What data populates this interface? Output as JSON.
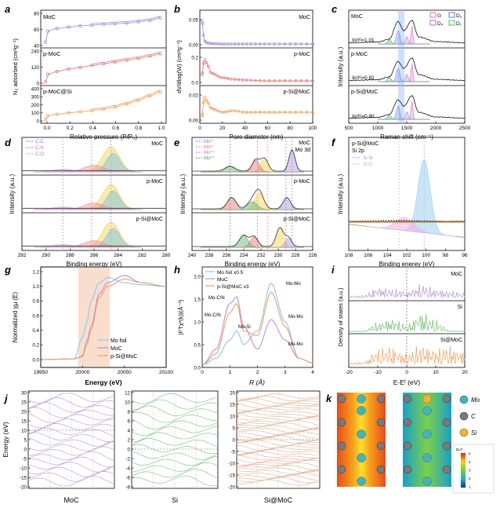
{
  "figure": {
    "panels": {
      "a": {
        "letter": "a",
        "ylabel": "N₂ adsorbed (cm³g⁻¹)",
        "xlabel": "Relative pressure (P/P₀)",
        "xticks": [
          "0.0",
          "0.2",
          "0.4",
          "0.6",
          "0.8",
          "1.0"
        ],
        "subplots": [
          {
            "label": "MoC",
            "yticks": [
              "40",
              "60",
              "80"
            ],
            "color": "#a98bd8"
          },
          {
            "label": "p-MoC",
            "yticks": [
              "0",
              "120",
              "240"
            ],
            "color": "#e08080"
          },
          {
            "label": "p-MoC@Si",
            "yticks": [
              "0",
              "100",
              "200",
              "300",
              "400"
            ],
            "color": "#f0a060"
          }
        ]
      },
      "b": {
        "letter": "b",
        "ylabel": "dV/dlog(W) (cm³g⁻¹)",
        "xlabel": "Pore diameter (nm)",
        "xticks": [
          "0",
          "20",
          "40",
          "60",
          "80",
          "100"
        ],
        "subplots": [
          {
            "label": "MoC",
            "yticks": [
              "0.00",
              "0.05"
            ],
            "color": "#a98bd8"
          },
          {
            "label": "p-MoC",
            "yticks": [
              "0.0",
              "0.2"
            ],
            "color": "#e08080"
          },
          {
            "label": "p-Si@MoC",
            "yticks": [
              "0.00",
              "0.02"
            ],
            "color": "#f0a060"
          }
        ]
      },
      "c": {
        "letter": "c",
        "ylabel": "Intensity (a.u.)",
        "xlabel": "Raman shift (cm⁻¹)",
        "xticks": [
          "500",
          "1000",
          "1500",
          "2000",
          "2500"
        ],
        "legend": [
          "G",
          "D₃",
          "D₄",
          "D₁"
        ],
        "subplots": [
          {
            "label": "MoC",
            "ratio": "Iᴅ/Iᴳ=1.01"
          },
          {
            "label": "p-MoC",
            "ratio": "Iᴅ/Iᴳ=0.82"
          },
          {
            "label": "p-Si@MoC",
            "ratio": "Iᴅ/Iᴳ=0.80"
          }
        ]
      },
      "d": {
        "letter": "d",
        "ylabel": "Intensity (a.u.)",
        "xlabel": "Binding energy (eV)",
        "xticks": [
          "292",
          "290",
          "288",
          "286",
          "284",
          "282",
          "280"
        ],
        "legend": [
          "C-C",
          "C-N",
          "C-O"
        ],
        "subplots": [
          "MoC",
          "p-MoC",
          "p-Si@MoC"
        ]
      },
      "e": {
        "letter": "e",
        "ylabel": "Intensity (a.u.)",
        "xlabel": "Binding energy (eV)",
        "xticks": [
          "240",
          "238",
          "236",
          "234",
          "232",
          "230",
          "228",
          "226"
        ],
        "legend": [
          "Mo²⁺",
          "Mo³⁺",
          "Mo⁴⁺",
          "Mo⁶⁺"
        ],
        "note": "Mo 3d",
        "subplots": [
          "MoC",
          "p-MoC",
          "p-Si@MoC"
        ]
      },
      "f": {
        "letter": "f",
        "ylabel": "Intensity (a.u.)",
        "xlabel": "Binding enerey (eV)",
        "xticks": [
          "108",
          "106",
          "104",
          "102",
          "100",
          "98",
          "96"
        ],
        "title1": "p-Si@MoC",
        "title2": "Si 2p",
        "legend": [
          "Si-Si",
          "Si-O"
        ]
      },
      "g": {
        "letter": "g",
        "ylabel": "Normalized χμ (E)",
        "xlabel": "Energy (eV)",
        "xticks": [
          "19950",
          "20000",
          "20050",
          "20100"
        ],
        "yticks": [
          "0.0",
          "0.2",
          "0.4",
          "0.6",
          "0.8",
          "1.0",
          "1.2"
        ],
        "legend": [
          "Mo foil",
          "MoC",
          "p-Si@MoC"
        ]
      },
      "h": {
        "letter": "h",
        "ylabel": "|FTχ²(k)|(Å⁻³)",
        "xlabel": "R (Å)",
        "xticks": [
          "0",
          "1",
          "2",
          "3",
          "4"
        ],
        "yticks": [
          "0.0",
          "0.5",
          "1.0",
          "1.5",
          "2.0"
        ],
        "legend": [
          "Mo foil x0.5",
          "MoC",
          "p-Si@MoC x3"
        ],
        "annotations": [
          "Mo-C/N",
          "Mo-C/N",
          "Mo-Si",
          "Mo-Mo",
          "Mo-Mo",
          "Mo-Mo"
        ]
      },
      "i": {
        "letter": "i",
        "ylabel": "Density of states (a.u.)",
        "xlabel": "E-Eᶠ (eV)",
        "xticks": [
          "-20",
          "-10",
          "0",
          "10",
          "20"
        ],
        "subplots": [
          "MoC",
          "Si",
          "Si@MoC"
        ]
      },
      "j": {
        "letter": "j",
        "ylabel": "Energy (eV)",
        "subplots": [
          {
            "label": "MoC",
            "yticks": [
              "-20",
              "-15",
              "-10",
              "-5",
              "0",
              "5",
              "10",
              "15",
              "20",
              "25",
              "30"
            ]
          },
          {
            "label": "Si",
            "yticks": [
              "-8",
              "-6",
              "-4",
              "-2",
              "0",
              "2",
              "4",
              "6",
              "8",
              "10",
              "12"
            ]
          },
          {
            "label": "Si@MoC",
            "yticks": [
              "-20",
              "-15",
              "-10",
              "-5",
              "0",
              "5",
              "10",
              "15",
              "20"
            ]
          }
        ]
      },
      "k": {
        "letter": "k",
        "legend": [
          "Mo",
          "C",
          "Si"
        ],
        "colorbar_label": "ELF",
        "colorbar_ticks": [
          "1",
          "2",
          "3",
          "4",
          "5"
        ]
      }
    }
  },
  "chart_data": [
    {
      "panel": "a",
      "type": "scatter",
      "x": [
        0.0,
        0.02,
        0.1,
        0.2,
        0.3,
        0.4,
        0.5,
        0.6,
        0.7,
        0.8,
        0.9,
        0.99
      ],
      "series": [
        {
          "name": "MoC",
          "values": [
            45,
            62,
            66,
            68,
            70,
            71,
            72,
            73,
            74,
            76,
            78,
            82
          ]
        },
        {
          "name": "p-MoC",
          "values": [
            10,
            75,
            100,
            120,
            135,
            150,
            165,
            180,
            195,
            210,
            230,
            250
          ]
        },
        {
          "name": "p-MoC@Si",
          "values": [
            20,
            70,
            90,
            110,
            125,
            140,
            160,
            190,
            230,
            280,
            340,
            400
          ]
        }
      ]
    },
    {
      "panel": "b",
      "type": "line",
      "x": [
        2,
        4,
        6,
        10,
        20,
        30,
        40,
        60,
        80,
        100
      ],
      "series": [
        {
          "name": "MoC",
          "values": [
            0.06,
            0.01,
            0.005,
            0.003,
            0.002,
            0.002,
            0.002,
            0.002,
            0.002,
            0.002
          ]
        },
        {
          "name": "p-MoC",
          "values": [
            0.1,
            0.3,
            0.25,
            0.12,
            0.06,
            0.04,
            0.03,
            0.02,
            0.02,
            0.02
          ]
        },
        {
          "name": "p-Si@MoC",
          "values": [
            0.005,
            0.03,
            0.025,
            0.015,
            0.01,
            0.012,
            0.01,
            0.01,
            0.01,
            0.01
          ]
        }
      ]
    },
    {
      "panel": "c",
      "type": "line",
      "x": [
        500,
        1000,
        1200,
        1350,
        1450,
        1590,
        1700,
        2000,
        2500
      ],
      "series": [
        {
          "name": "MoC",
          "values": [
            0.05,
            0.08,
            0.2,
            0.95,
            0.55,
            1.0,
            0.3,
            0.1,
            0.05
          ]
        },
        {
          "name": "p-MoC",
          "values": [
            0.05,
            0.08,
            0.2,
            0.85,
            0.55,
            1.0,
            0.3,
            0.1,
            0.05
          ]
        },
        {
          "name": "p-Si@MoC",
          "values": [
            0.05,
            0.08,
            0.2,
            0.82,
            0.55,
            1.0,
            0.3,
            0.1,
            0.05
          ]
        }
      ]
    },
    {
      "panel": "d",
      "type": "line",
      "x": [
        292,
        290,
        288,
        286,
        285,
        284.6,
        284,
        282,
        280
      ],
      "series": [
        {
          "name": "MoC",
          "values": [
            0.05,
            0.08,
            0.12,
            0.3,
            0.8,
            1.0,
            0.6,
            0.1,
            0.05
          ]
        },
        {
          "name": "p-MoC",
          "values": [
            0.05,
            0.07,
            0.1,
            0.25,
            0.8,
            1.0,
            0.6,
            0.1,
            0.05
          ]
        },
        {
          "name": "p-Si@MoC",
          "values": [
            0.05,
            0.1,
            0.15,
            0.3,
            0.8,
            1.0,
            0.6,
            0.1,
            0.05
          ]
        }
      ]
    },
    {
      "panel": "e",
      "type": "line",
      "x": [
        240,
        236,
        235.5,
        234,
        232.5,
        231,
        229,
        228.5,
        226
      ],
      "series": [
        {
          "name": "MoC",
          "values": [
            0.05,
            0.2,
            0.3,
            0.4,
            0.6,
            0.5,
            0.8,
            1.0,
            0.1
          ]
        },
        {
          "name": "p-MoC",
          "values": [
            0.05,
            0.5,
            0.55,
            0.35,
            0.8,
            0.5,
            0.7,
            0.6,
            0.1
          ]
        },
        {
          "name": "p-Si@MoC",
          "values": [
            0.05,
            0.3,
            0.35,
            0.5,
            0.6,
            0.45,
            0.9,
            0.7,
            0.1
          ]
        }
      ]
    },
    {
      "panel": "f",
      "type": "line",
      "x": [
        108,
        106,
        104,
        102,
        101,
        100.2,
        99,
        98,
        96
      ],
      "series": [
        {
          "name": "p-Si@MoC",
          "values": [
            0.25,
            0.2,
            0.18,
            0.3,
            0.7,
            1.0,
            0.5,
            0.12,
            0.08
          ]
        }
      ]
    },
    {
      "panel": "g",
      "type": "line",
      "x": [
        19950,
        19990,
        20000,
        20005,
        20010,
        20020,
        20030,
        20050,
        20070,
        20100
      ],
      "series": [
        {
          "name": "Mo foil",
          "values": [
            0.0,
            0.01,
            0.3,
            0.5,
            0.8,
            1.05,
            1.12,
            1.05,
            1.02,
            1.0
          ]
        },
        {
          "name": "MoC",
          "values": [
            0.0,
            0.01,
            0.05,
            0.25,
            0.45,
            0.9,
            1.05,
            1.15,
            1.05,
            1.0
          ]
        },
        {
          "name": "p-Si@MoC",
          "values": [
            0.0,
            0.01,
            0.04,
            0.2,
            0.4,
            0.85,
            1.0,
            1.1,
            1.05,
            1.0
          ]
        }
      ]
    },
    {
      "panel": "h",
      "type": "line",
      "x": [
        0,
        0.5,
        1.0,
        1.25,
        1.5,
        2.0,
        2.5,
        3.0,
        3.5,
        4.0
      ],
      "series": [
        {
          "name": "Mo foil x0.5",
          "values": [
            0.05,
            0.2,
            0.6,
            0.8,
            0.5,
            0.8,
            1.85,
            1.0,
            0.2,
            0.1
          ]
        },
        {
          "name": "MoC",
          "values": [
            0.05,
            0.4,
            1.4,
            1.55,
            0.9,
            0.4,
            1.05,
            0.6,
            0.2,
            0.1
          ]
        },
        {
          "name": "p-Si@MoC x3",
          "values": [
            0.05,
            0.3,
            1.2,
            1.4,
            0.8,
            0.7,
            1.65,
            0.9,
            0.2,
            0.1
          ]
        }
      ]
    },
    {
      "panel": "i",
      "type": "line",
      "x": [
        -20,
        -15,
        -10,
        -5,
        0,
        5,
        10,
        15,
        20
      ],
      "series": [
        {
          "name": "MoC",
          "values": [
            0.05,
            0.1,
            0.5,
            0.4,
            0.3,
            0.6,
            0.4,
            0.3,
            0.2
          ]
        },
        {
          "name": "Si",
          "values": [
            0.0,
            0.0,
            0.4,
            0.6,
            0.3,
            0.9,
            0.5,
            0.0,
            0.0
          ]
        },
        {
          "name": "Si@MoC",
          "values": [
            0.05,
            0.1,
            0.7,
            0.8,
            0.5,
            0.9,
            0.7,
            0.8,
            0.6
          ]
        }
      ]
    },
    {
      "panel": "j",
      "type": "line",
      "note": "electronic band structures",
      "series": [
        {
          "name": "MoC"
        },
        {
          "name": "Si"
        },
        {
          "name": "Si@MoC"
        }
      ]
    }
  ]
}
